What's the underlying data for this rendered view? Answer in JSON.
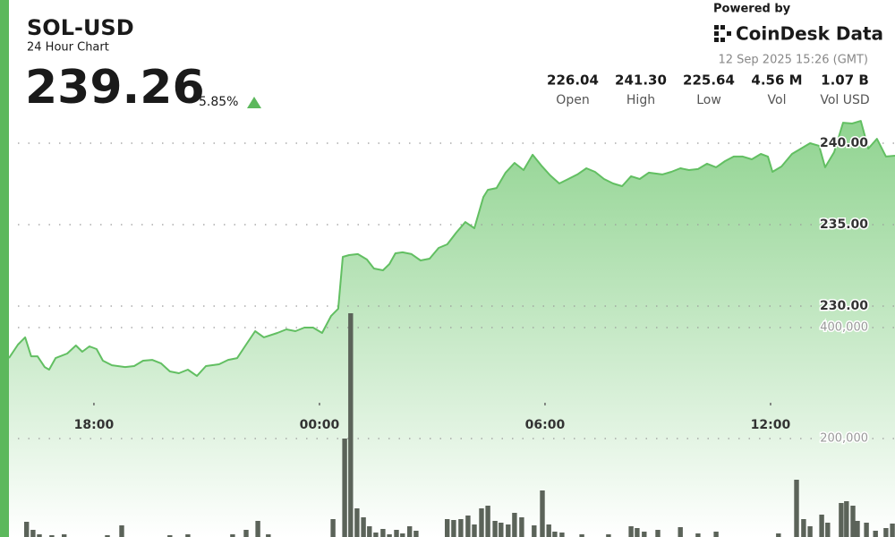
{
  "header": {
    "symbol": "SOL-USD",
    "subtitle": "24 Hour Chart",
    "price": "239.26",
    "change": "5.85%",
    "powered_by": "Powered by",
    "brand": "CoinDesk Data",
    "timestamp": "12 Sep 2025 15:26 (GMT)"
  },
  "stats": [
    {
      "value": "226.04",
      "label": "Open"
    },
    {
      "value": "241.30",
      "label": "High"
    },
    {
      "value": "225.64",
      "label": "Low"
    },
    {
      "value": "4.56 M",
      "label": "Vol"
    },
    {
      "value": "1.07 B",
      "label": "Vol USD"
    }
  ],
  "chart_data": {
    "type": "line",
    "xlim": [
      15.74,
      39.31
    ],
    "xticks": [
      {
        "value": 18,
        "label": "18:00"
      },
      {
        "value": 24,
        "label": "00:00"
      },
      {
        "value": 30,
        "label": "06:00"
      },
      {
        "value": 36,
        "label": "12:00"
      }
    ],
    "ylim": [
      227,
      242
    ],
    "yticks": [
      {
        "value": 230,
        "label": "230.00"
      },
      {
        "value": 235,
        "label": "235.00"
      },
      {
        "value": 240,
        "label": "240.00"
      }
    ],
    "y2lim": [
      0,
      450000
    ],
    "y2ticks": [
      {
        "value": 200000,
        "label": "200,000"
      },
      {
        "value": 400000,
        "label": "400,000"
      }
    ],
    "grid": true,
    "series": [
      {
        "type": "area",
        "color": "#62bf62",
        "x": [
          15.74,
          15.98,
          16.17,
          16.33,
          16.5,
          16.69,
          16.81,
          16.98,
          17.29,
          17.52,
          17.69,
          17.88,
          18.07,
          18.24,
          18.48,
          18.83,
          19.07,
          19.31,
          19.55,
          19.79,
          20.02,
          20.26,
          20.5,
          20.74,
          20.98,
          21.33,
          21.57,
          21.81,
          22.05,
          22.29,
          22.52,
          22.88,
          23.12,
          23.36,
          23.6,
          23.83,
          24.07,
          24.31,
          24.5,
          24.62,
          24.79,
          25.02,
          25.26,
          25.45,
          25.69,
          25.86,
          26.02,
          26.21,
          26.45,
          26.69,
          26.93,
          27.17,
          27.4,
          27.64,
          27.88,
          28.12,
          28.36,
          28.48,
          28.71,
          28.95,
          29.19,
          29.43,
          29.67,
          29.9,
          30.14,
          30.38,
          30.62,
          30.86,
          31.1,
          31.33,
          31.57,
          31.81,
          32.05,
          32.29,
          32.52,
          32.76,
          33.12,
          33.36,
          33.6,
          33.83,
          34.07,
          34.31,
          34.55,
          34.79,
          35.02,
          35.26,
          35.5,
          35.74,
          35.93,
          36.05,
          36.29,
          36.57,
          36.81,
          37.05,
          37.29,
          37.45,
          37.69,
          37.93,
          38.17,
          38.4,
          38.6,
          38.83,
          39.07,
          39.31
        ],
        "values": [
          226.81,
          227.64,
          228.08,
          226.92,
          226.92,
          226.26,
          226.1,
          226.81,
          227.09,
          227.58,
          227.2,
          227.53,
          227.36,
          226.65,
          226.37,
          226.26,
          226.32,
          226.65,
          226.7,
          226.48,
          225.99,
          225.88,
          226.1,
          225.71,
          226.32,
          226.43,
          226.7,
          226.81,
          227.64,
          228.46,
          228.08,
          228.35,
          228.57,
          228.46,
          228.68,
          228.68,
          228.35,
          229.4,
          229.84,
          233.02,
          233.13,
          233.19,
          232.86,
          232.31,
          232.2,
          232.58,
          233.24,
          233.3,
          233.19,
          232.8,
          232.91,
          233.57,
          233.79,
          234.51,
          235.16,
          234.78,
          236.7,
          237.14,
          237.25,
          238.19,
          238.79,
          238.35,
          239.29,
          238.63,
          238.02,
          237.53,
          237.8,
          238.08,
          238.46,
          238.24,
          237.8,
          237.53,
          237.36,
          237.97,
          237.8,
          238.19,
          238.08,
          238.24,
          238.46,
          238.35,
          238.41,
          238.74,
          238.52,
          238.9,
          239.18,
          239.18,
          239.01,
          239.34,
          239.18,
          238.24,
          238.57,
          239.34,
          239.67,
          240.0,
          239.84,
          238.52,
          239.45,
          241.26,
          241.21,
          241.37,
          239.67,
          240.27,
          239.18,
          239.23
        ]
      },
      {
        "type": "bar",
        "axis": "y2",
        "color": "#5b6359",
        "x": [
          16.21,
          16.38,
          16.55,
          16.88,
          17.21,
          18.36,
          18.74,
          20.02,
          20.5,
          21.69,
          22.05,
          22.36,
          22.64,
          24.36,
          24.67,
          24.83,
          25.0,
          25.17,
          25.33,
          25.5,
          25.69,
          25.86,
          26.05,
          26.21,
          26.4,
          26.57,
          27.4,
          27.57,
          27.76,
          27.95,
          28.12,
          28.31,
          28.48,
          28.67,
          28.83,
          29.02,
          29.19,
          29.38,
          29.71,
          29.93,
          30.1,
          30.26,
          30.45,
          30.98,
          31.69,
          32.29,
          32.45,
          32.64,
          33.0,
          33.6,
          34.07,
          34.55,
          36.21,
          36.69,
          36.88,
          37.05,
          37.36,
          37.52,
          37.88,
          38.02,
          38.19,
          38.31,
          38.55,
          38.79,
          39.07,
          39.24
        ],
        "values": [
          50000,
          35500,
          27400,
          25800,
          27400,
          25800,
          43500,
          25800,
          27400,
          27400,
          35500,
          51600,
          27400,
          54800,
          200000,
          425800,
          74200,
          58100,
          41900,
          30600,
          37100,
          27400,
          35500,
          29000,
          41900,
          33900,
          54800,
          53200,
          54800,
          61300,
          45200,
          74200,
          79000,
          51600,
          48400,
          45200,
          66100,
          58100,
          43500,
          106500,
          45200,
          32300,
          30600,
          27400,
          27400,
          41900,
          38700,
          32300,
          35500,
          40300,
          29000,
          32300,
          29000,
          125800,
          54800,
          41900,
          62900,
          48400,
          83900,
          87100,
          79000,
          51600,
          48400,
          33900,
          38700,
          46800
        ]
      }
    ]
  }
}
